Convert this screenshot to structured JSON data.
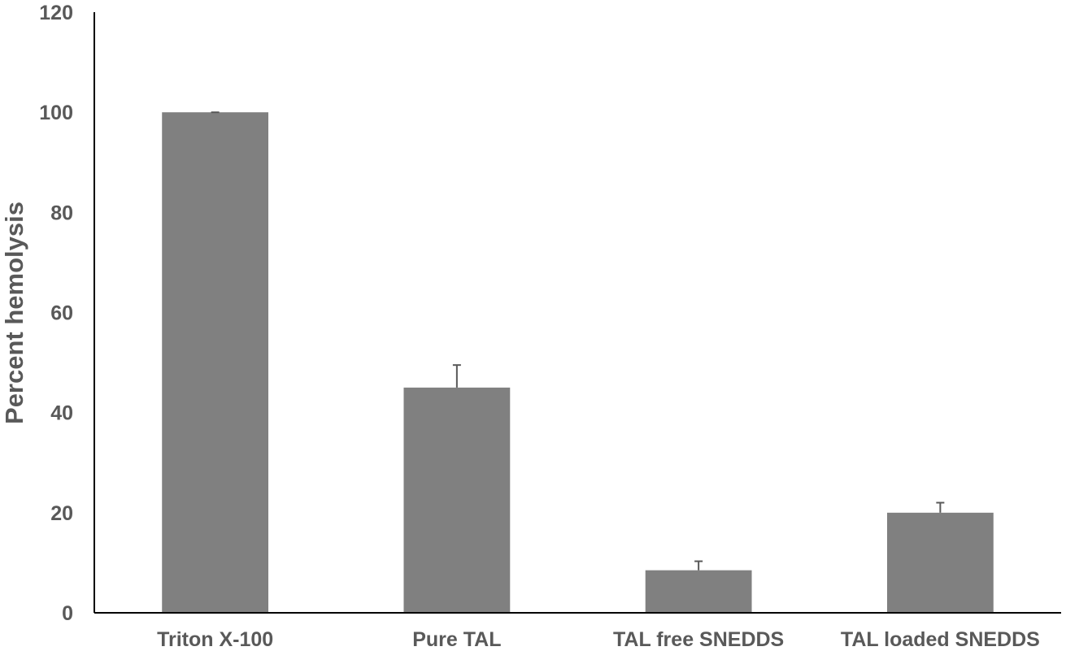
{
  "chart_data": {
    "type": "bar",
    "title": "",
    "xlabel": "",
    "ylabel": "Percent hemolysis",
    "ylim": [
      0,
      120
    ],
    "yticks": [
      0,
      20,
      40,
      60,
      80,
      100,
      120
    ],
    "grid": false,
    "legend": "none",
    "bar_color": "#808080",
    "categories": [
      "Triton X-100",
      "Pure TAL",
      "TAL free SNEDDS",
      "TAL loaded SNEDDS"
    ],
    "values": [
      100,
      45,
      8.5,
      20
    ],
    "errors": [
      0,
      4.5,
      1.8,
      2
    ]
  }
}
